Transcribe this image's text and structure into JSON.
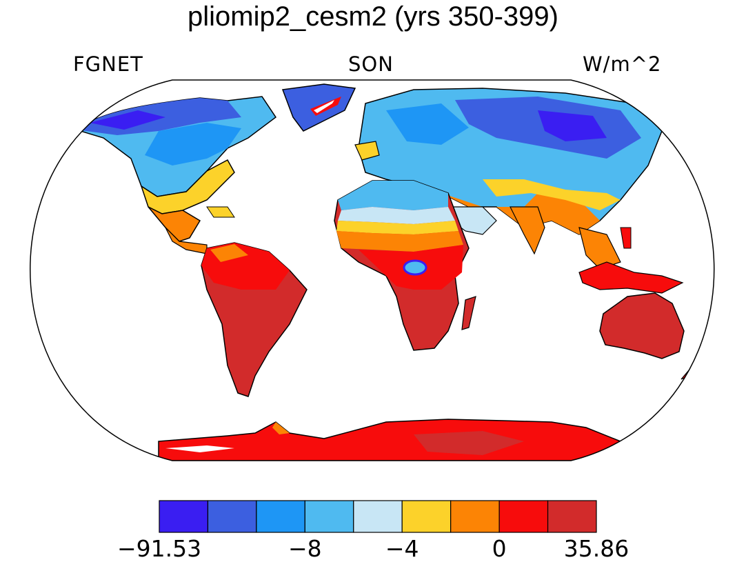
{
  "title": "pliomip2_cesm2 (yrs 350-399)",
  "left_label": "FGNET",
  "center_label": "SON",
  "right_label": "W/m^2",
  "colorbar": {
    "colors": [
      "#3a1ef2",
      "#3c5fe0",
      "#1e96f5",
      "#4fbaf0",
      "#c8e6f5",
      "#fcd22a",
      "#fc8405",
      "#f70c0c",
      "#d22b2b"
    ],
    "tick_labels": [
      "−91.53",
      "−8",
      "−4",
      "0",
      "35.86"
    ]
  },
  "legend_colors": {
    "ocean": "#ffffff",
    "coastline": "#000000"
  }
}
